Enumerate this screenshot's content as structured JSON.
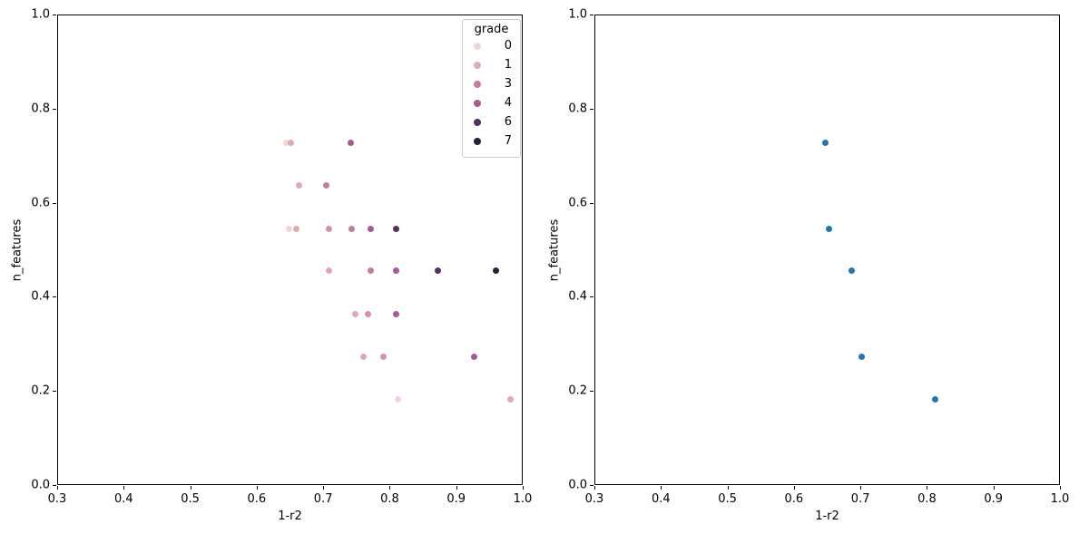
{
  "figure": {
    "background": "#ffffff"
  },
  "palette": {
    "0": "#f1d7d2",
    "1": "#e0a9b0",
    "2": "#d392ab",
    "3": "#c47aa1",
    "4": "#a55a9c",
    "5": "#7c4480",
    "6": "#533061",
    "7": "#2d1e3e"
  },
  "chart_data": [
    {
      "type": "scatter",
      "title": "",
      "xlabel": "1-r2",
      "ylabel": "n_features",
      "xlim": [
        0.3,
        1.0
      ],
      "ylim": [
        0.0,
        1.0
      ],
      "xticks": [
        "0.3",
        "0.4",
        "0.5",
        "0.6",
        "0.7",
        "0.8",
        "0.9",
        "1.0"
      ],
      "yticks": [
        "0.0",
        "0.2",
        "0.4",
        "0.6",
        "0.8",
        "1.0"
      ],
      "grid": false,
      "hue": "grade",
      "legend": {
        "title": "grade",
        "position": "upper right",
        "entries": [
          "0",
          "1",
          "3",
          "4",
          "6",
          "7"
        ]
      },
      "points": [
        {
          "x": 0.645,
          "y": 0.727,
          "grade": 0
        },
        {
          "x": 0.652,
          "y": 0.727,
          "grade": 1
        },
        {
          "x": 0.742,
          "y": 0.727,
          "grade": 4
        },
        {
          "x": 0.664,
          "y": 0.636,
          "grade": 1
        },
        {
          "x": 0.704,
          "y": 0.636,
          "grade": 3
        },
        {
          "x": 0.649,
          "y": 0.545,
          "grade": 0
        },
        {
          "x": 0.66,
          "y": 0.545,
          "grade": 1
        },
        {
          "x": 0.709,
          "y": 0.545,
          "grade": 2
        },
        {
          "x": 0.743,
          "y": 0.545,
          "grade": 3
        },
        {
          "x": 0.772,
          "y": 0.545,
          "grade": 4
        },
        {
          "x": 0.81,
          "y": 0.545,
          "grade": 6
        },
        {
          "x": 0.708,
          "y": 0.455,
          "grade": 1
        },
        {
          "x": 0.771,
          "y": 0.455,
          "grade": 3
        },
        {
          "x": 0.81,
          "y": 0.455,
          "grade": 4
        },
        {
          "x": 0.873,
          "y": 0.455,
          "grade": 6
        },
        {
          "x": 0.96,
          "y": 0.455,
          "grade": 7
        },
        {
          "x": 0.748,
          "y": 0.364,
          "grade": 1
        },
        {
          "x": 0.767,
          "y": 0.364,
          "grade": 2
        },
        {
          "x": 0.81,
          "y": 0.364,
          "grade": 4
        },
        {
          "x": 0.761,
          "y": 0.273,
          "grade": 1
        },
        {
          "x": 0.791,
          "y": 0.273,
          "grade": 2
        },
        {
          "x": 0.927,
          "y": 0.273,
          "grade": 4
        },
        {
          "x": 0.813,
          "y": 0.182,
          "grade": 0
        },
        {
          "x": 0.982,
          "y": 0.182,
          "grade": 1
        }
      ]
    },
    {
      "type": "scatter",
      "title": "",
      "xlabel": "1-r2",
      "ylabel": "n_features",
      "xlim": [
        0.3,
        1.0
      ],
      "ylim": [
        0.0,
        1.0
      ],
      "xticks": [
        "0.3",
        "0.4",
        "0.5",
        "0.6",
        "0.7",
        "0.8",
        "0.9",
        "1.0"
      ],
      "yticks": [
        "0.0",
        "0.2",
        "0.4",
        "0.6",
        "0.8",
        "1.0"
      ],
      "grid": false,
      "marker_color": "#1f77b4",
      "points": [
        {
          "x": 0.647,
          "y": 0.727
        },
        {
          "x": 0.653,
          "y": 0.545
        },
        {
          "x": 0.687,
          "y": 0.455
        },
        {
          "x": 0.702,
          "y": 0.273
        },
        {
          "x": 0.813,
          "y": 0.182
        }
      ]
    }
  ]
}
